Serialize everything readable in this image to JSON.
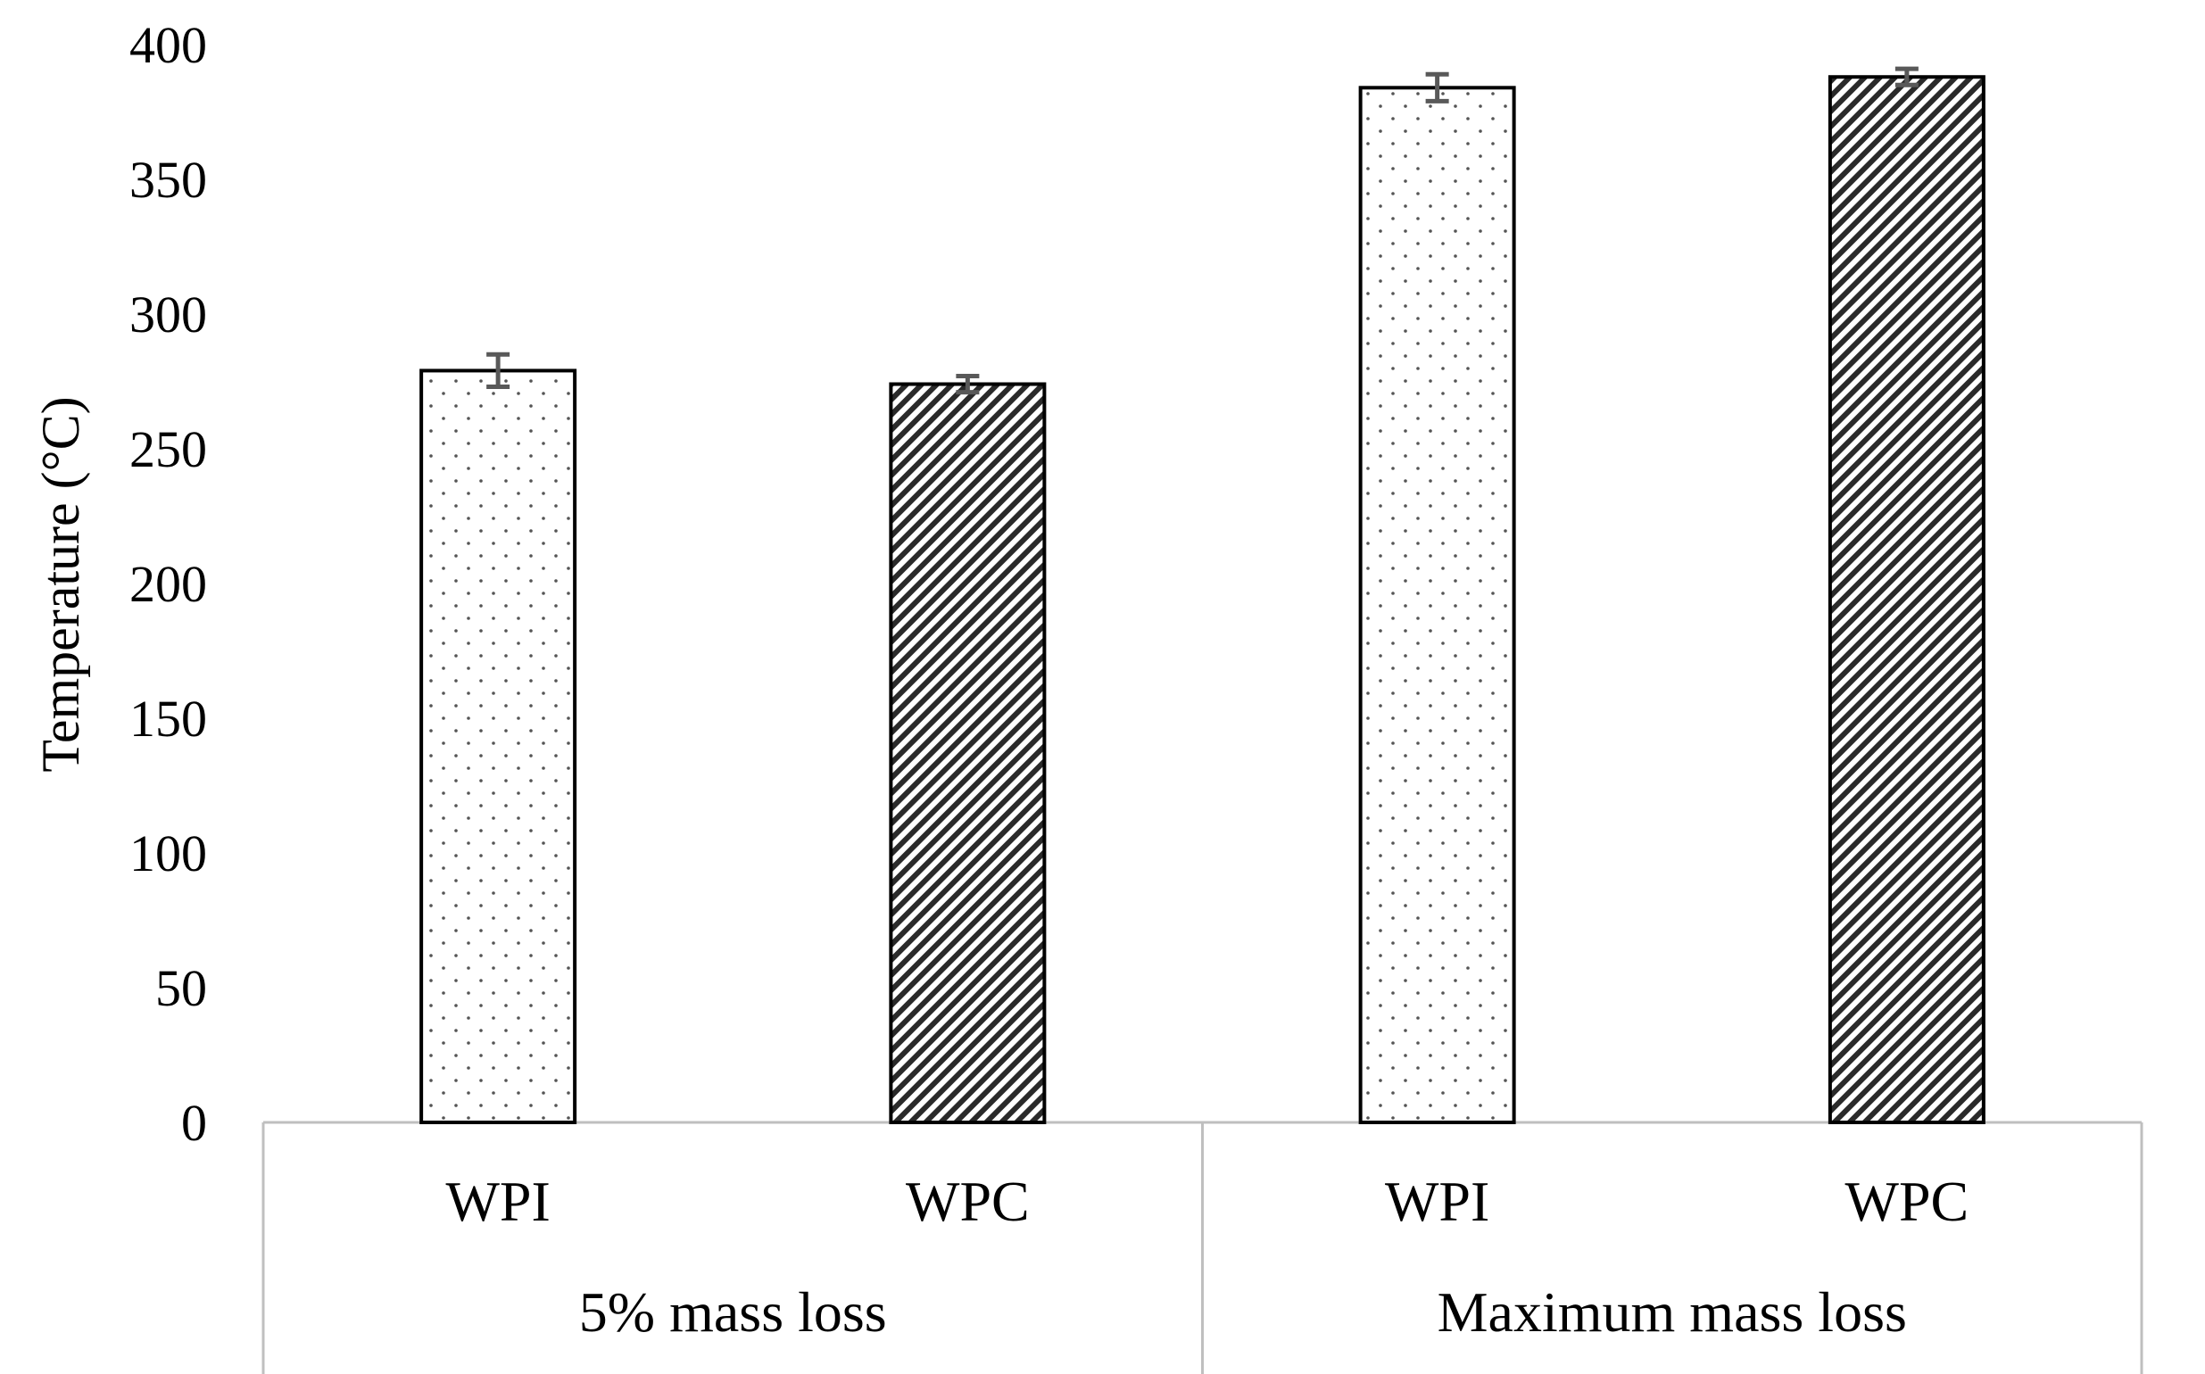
{
  "chart_data": {
    "type": "bar",
    "title": "",
    "xlabel": "",
    "ylabel": "Temperature (°C)",
    "ylim": [
      0,
      400
    ],
    "ytick_step": 50,
    "yticks": [
      "0",
      "50",
      "100",
      "150",
      "200",
      "250",
      "300",
      "350",
      "400"
    ],
    "gridlines": false,
    "groups": [
      {
        "label": "5% mass loss",
        "bars": [
          {
            "label": "WPI",
            "value": 279,
            "error": 6,
            "pattern": "dots"
          },
          {
            "label": "WPC",
            "value": 274,
            "error": 3,
            "pattern": "diagonal-hatch"
          }
        ]
      },
      {
        "label": "Maximum mass loss",
        "bars": [
          {
            "label": "WPI",
            "value": 384,
            "error": 5,
            "pattern": "dots"
          },
          {
            "label": "WPC",
            "value": 388,
            "error": 3,
            "pattern": "diagonal-hatch"
          }
        ]
      }
    ]
  }
}
